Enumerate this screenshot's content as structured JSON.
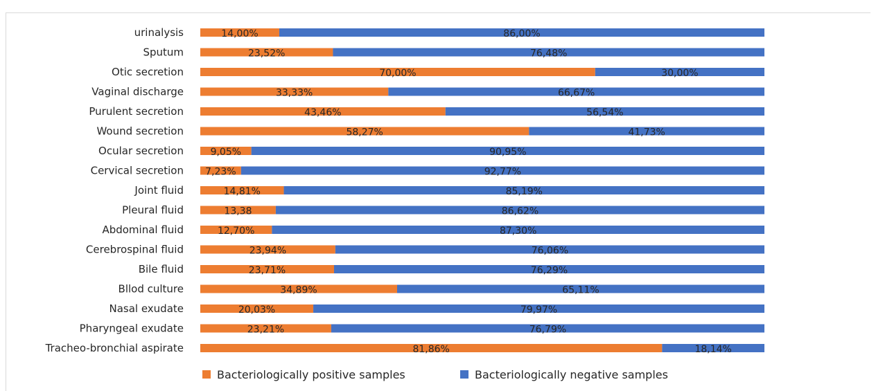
{
  "chart_data": {
    "type": "bar",
    "orientation": "horizontal",
    "stacked": true,
    "categories": [
      "urinalysis",
      "Sputum",
      "Otic secretion",
      "Vaginal discharge",
      "Purulent secretion",
      "Wound secretion",
      "Ocular secretion",
      "Cervical secretion",
      "Joint fluid",
      "Pleural fluid",
      "Abdominal fluid",
      "Cerebrospinal fluid",
      "Bile fluid",
      "Bllod culture",
      "Nasal exudate",
      "Pharyngeal exudate",
      "Tracheo-bronchial aspirate"
    ],
    "series": [
      {
        "name": "Bacteriologically positive samples",
        "color": "#ED7D31",
        "values": [
          14.0,
          23.52,
          70.0,
          33.33,
          43.46,
          58.27,
          9.05,
          7.23,
          14.81,
          13.38,
          12.7,
          23.94,
          23.71,
          34.89,
          20.03,
          23.21,
          81.86
        ],
        "labels": [
          "14,00%",
          "23,52%",
          "70,00%",
          "33,33%",
          "43,46%",
          "58,27%",
          "9,05%",
          "7,23%",
          "14,81%",
          "13,38",
          "12,70%",
          "23,94%",
          "23,71%",
          "34,89%",
          "20,03%",
          "23,21%",
          "81,86%"
        ]
      },
      {
        "name": "Bacteriologically negative samples",
        "color": "#4472C4",
        "values": [
          86.0,
          76.48,
          30.0,
          66.67,
          56.54,
          41.73,
          90.95,
          92.77,
          85.19,
          86.62,
          87.3,
          76.06,
          76.29,
          65.11,
          79.97,
          76.79,
          18.14
        ],
        "labels": [
          "86,00%",
          "76,48%",
          "30,00%",
          "66,67%",
          "56,54%",
          "41,73%",
          "90,95%",
          "92,77%",
          "85,19%",
          "86,62%",
          "87,30%",
          "76,06%",
          "76,29%",
          "65,11%",
          "79,97%",
          "76,79%",
          "18,14%"
        ]
      }
    ],
    "xlim": [
      0,
      100
    ],
    "grid": false,
    "legend": "bottom",
    "title": "",
    "xlabel": "",
    "ylabel": ""
  }
}
